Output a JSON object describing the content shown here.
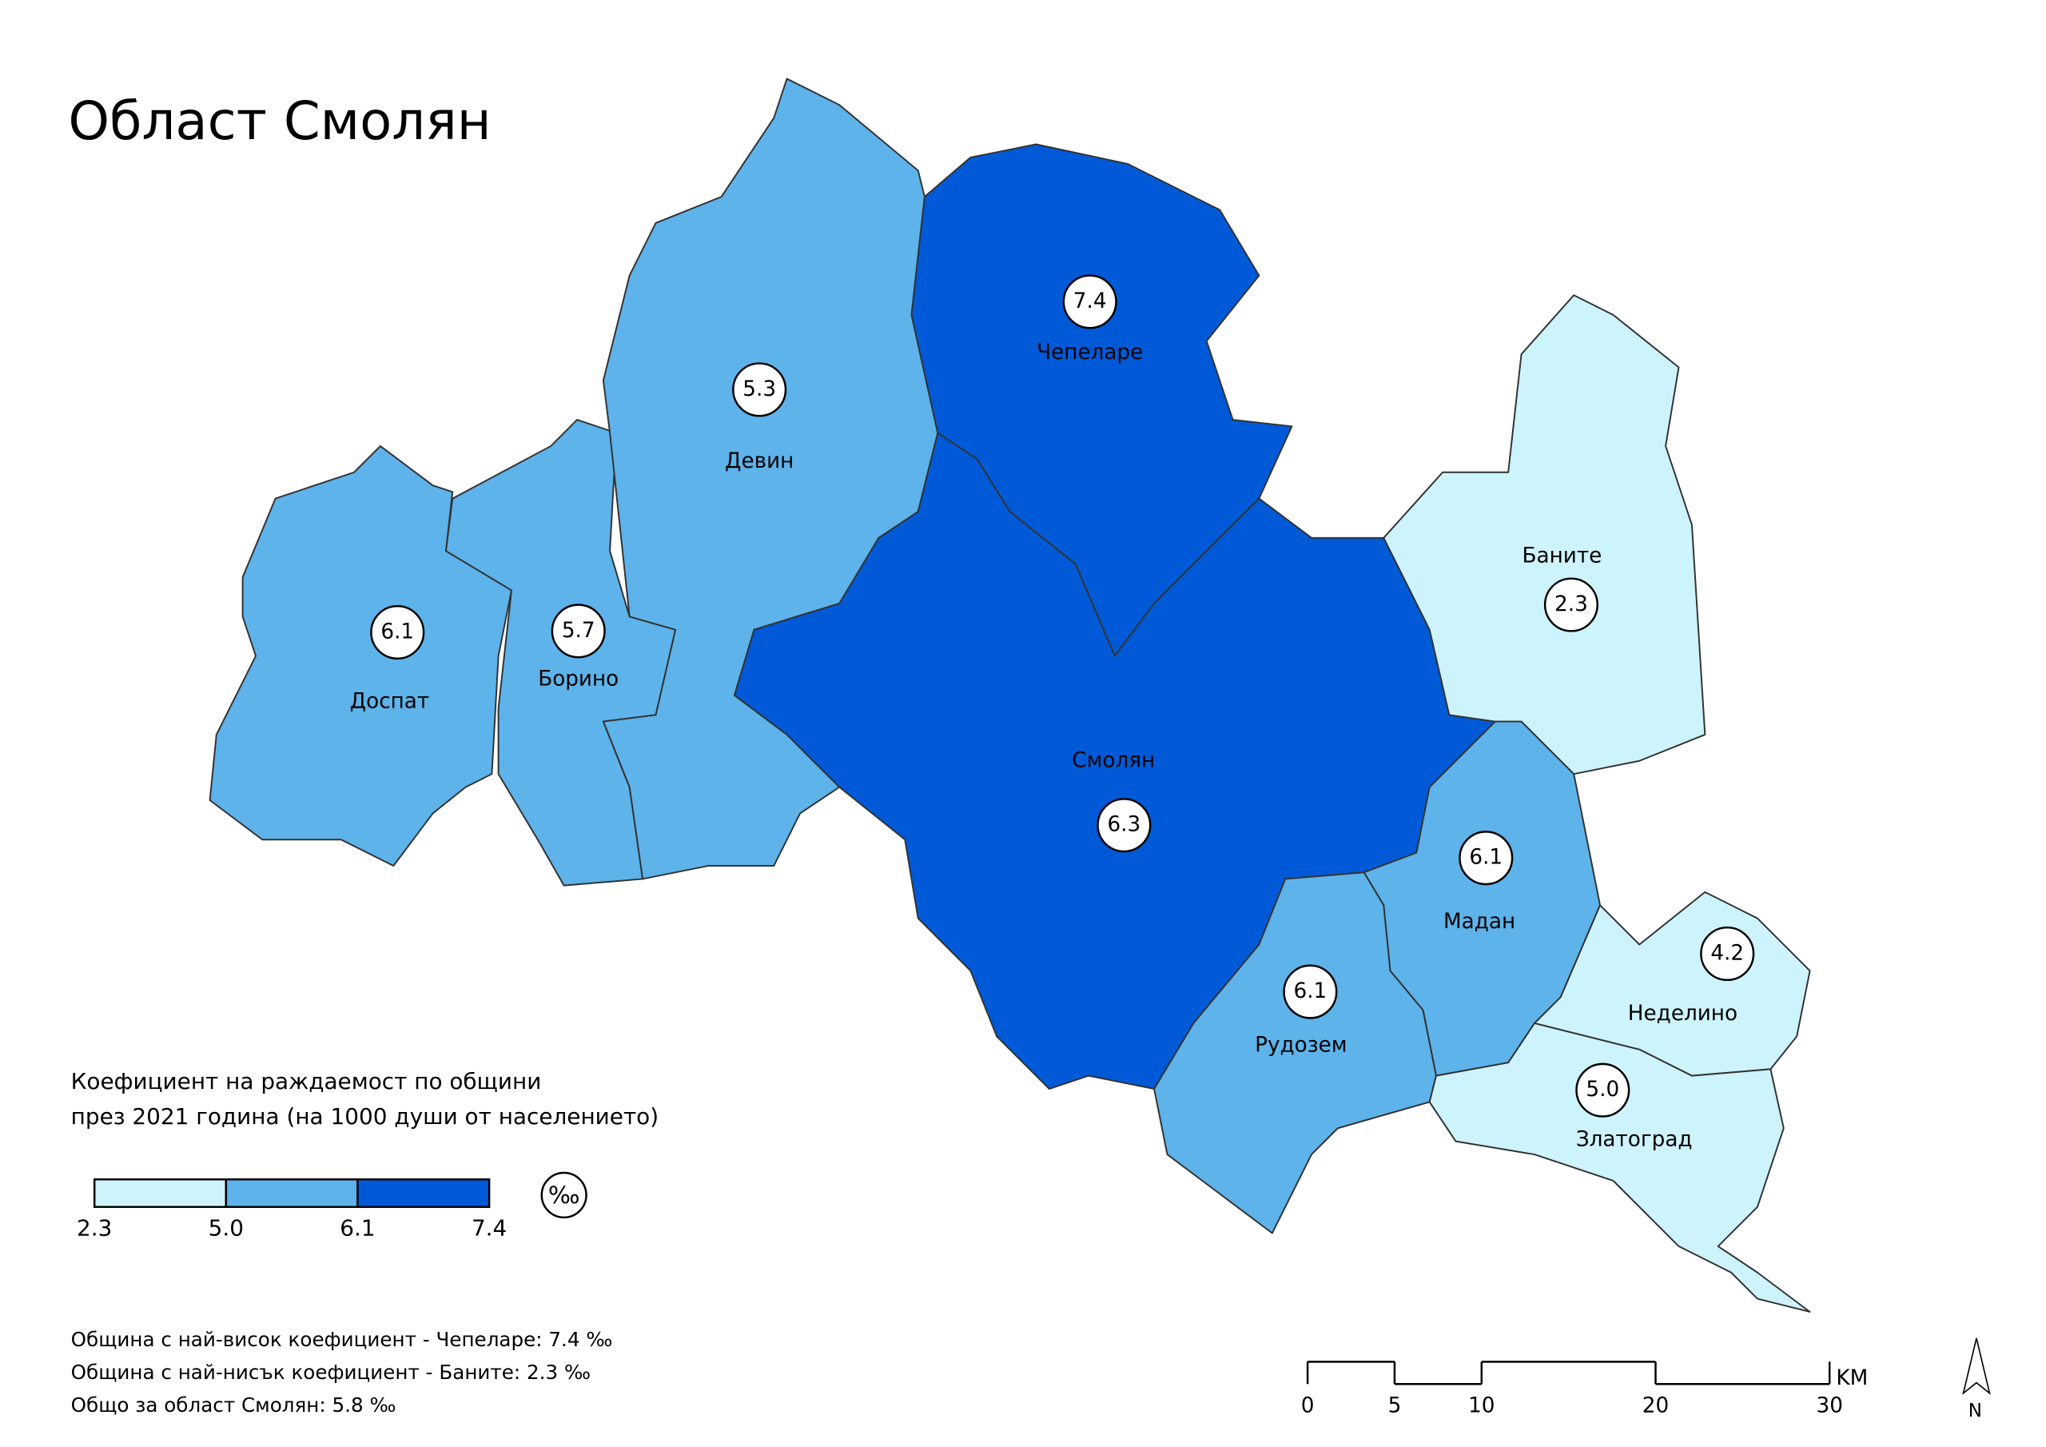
{
  "title": "Област Смолян",
  "municipalities": [
    {
      "name": "Доспат",
      "value": 6.1
    },
    {
      "name": "Борино",
      "value": 5.7
    },
    {
      "name": "Девин",
      "value": 5.3
    },
    {
      "name": "Чепеларе",
      "value": 7.4
    },
    {
      "name": "Смолян",
      "value": 6.3
    },
    {
      "name": "Баните",
      "value": 2.3
    },
    {
      "name": "Мадан",
      "value": 6.1
    },
    {
      "name": "Рудозем",
      "value": 6.1
    },
    {
      "name": "Неделино",
      "value": 4.2
    },
    {
      "name": "Златоград",
      "value": 5,
      "value_label": "5.0"
    }
  ],
  "legend": {
    "title": [
      "Коефициент на раждаемост по общини",
      "през 2021 година (на 1000 души от населението)"
    ],
    "breaks": [
      2.3,
      {
        "value": 5,
        "label": "5.0"
      },
      6.1,
      7.4
    ],
    "colors": [
      "#cdf3fc",
      "#5db3ea",
      "#005ad8"
    ],
    "unit": "‰"
  },
  "notes": [
    "Община с най-висок коефициент - Чепеларе: 7.4 ‰",
    "Община с най-нисък коефициент - Баните: 2.3 ‰",
    "Общо за област Смолян: 5.8 ‰"
  ],
  "scale_bar": {
    "ticks": [
      0,
      5,
      10,
      20,
      30
    ],
    "unit": "KM"
  },
  "north": "N"
}
